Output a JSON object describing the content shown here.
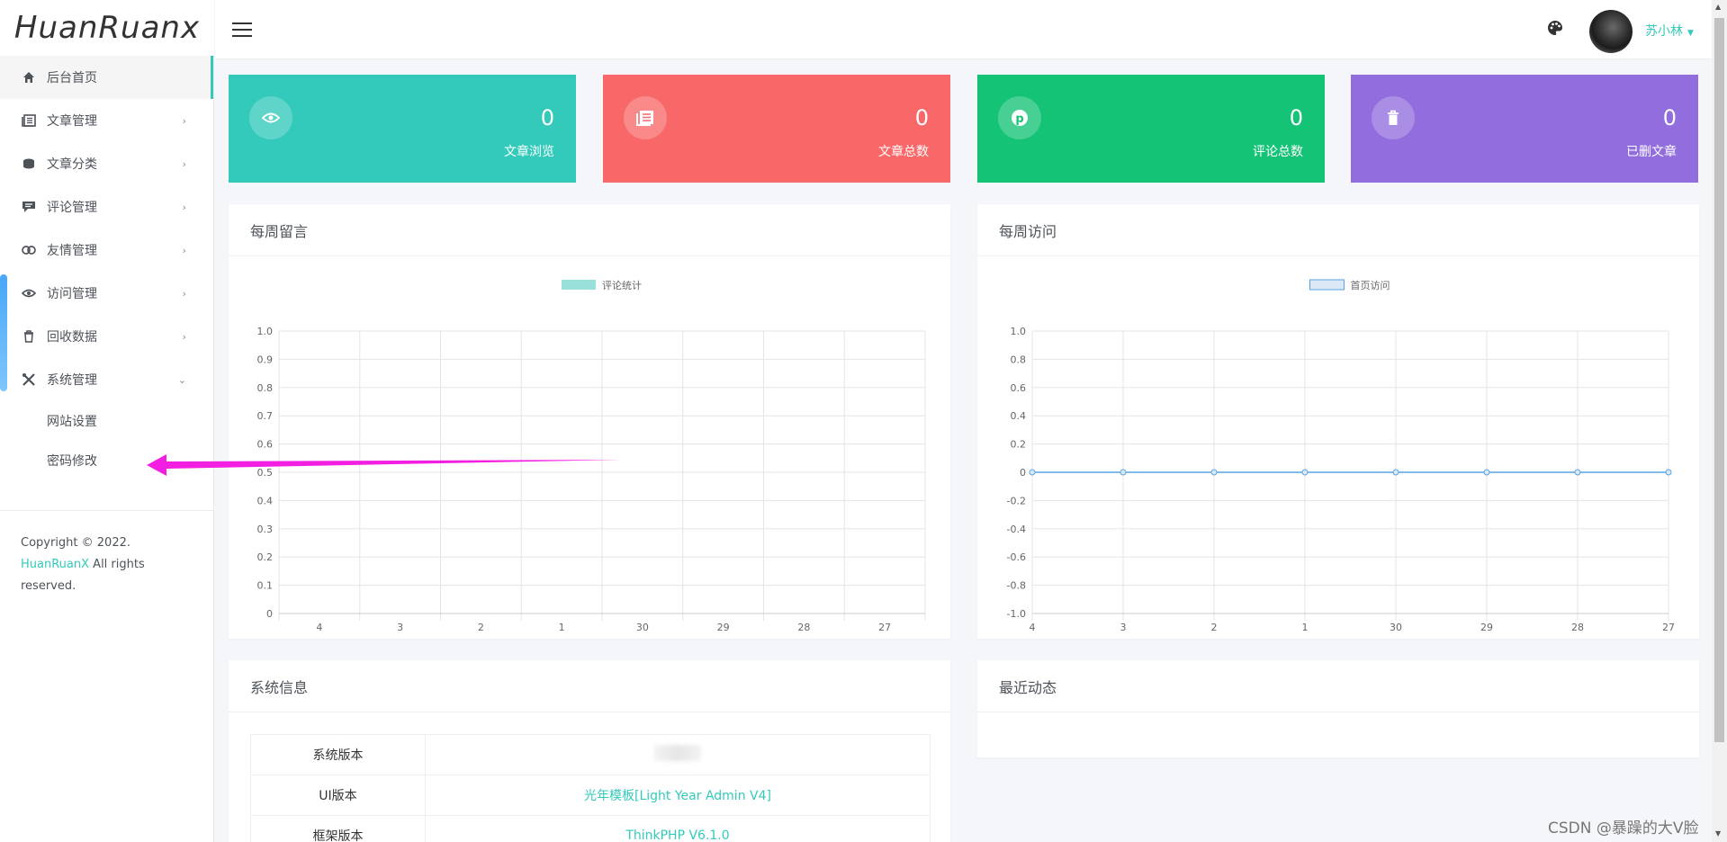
{
  "brand": {
    "logo": "HuanRuanx"
  },
  "sidebar": {
    "items": [
      {
        "label": "后台首页",
        "icon": "home-icon"
      },
      {
        "label": "文章管理",
        "icon": "article-icon"
      },
      {
        "label": "文章分类",
        "icon": "category-icon"
      },
      {
        "label": "评论管理",
        "icon": "comment-icon"
      },
      {
        "label": "友情管理",
        "icon": "link-icon"
      },
      {
        "label": "访问管理",
        "icon": "eye-icon"
      },
      {
        "label": "回收数据",
        "icon": "trash-icon"
      },
      {
        "label": "系统管理",
        "icon": "tools-icon"
      }
    ],
    "sub_items": [
      "网站设置",
      "密码修改"
    ],
    "copyright_prefix": "Copyright © 2022.",
    "copyright_brand": "HuanRuanX",
    "copyright_suffix": "All rights reserved."
  },
  "header": {
    "username": "苏小林"
  },
  "stats": [
    {
      "value": "0",
      "label": "文章浏览",
      "color": "#33cabb",
      "icon": "eye-icon"
    },
    {
      "value": "0",
      "label": "文章总数",
      "color": "#f96868",
      "icon": "article-icon"
    },
    {
      "value": "0",
      "label": "评论总数",
      "color": "#15c377",
      "icon": "pinterest-icon"
    },
    {
      "value": "0",
      "label": "已删文章",
      "color": "#926dde",
      "icon": "trash-icon"
    }
  ],
  "cards": {
    "weekly_comments": "每周留言",
    "weekly_visits": "每周访问",
    "system_info": "系统信息",
    "recent_activity": "最近动态"
  },
  "system_info": {
    "rows": [
      {
        "key": "系统版本",
        "value": ""
      },
      {
        "key": "UI版本",
        "value": "光年模板[Light Year Admin V4]"
      },
      {
        "key": "框架版本",
        "value": "ThinkPHP V6.1.0"
      }
    ]
  },
  "chart_data": [
    {
      "type": "bar",
      "categories": [
        "4",
        "3",
        "2",
        "1",
        "30",
        "29",
        "28",
        "27"
      ],
      "series": [
        {
          "name": "评论统计",
          "values": [
            0,
            0,
            0,
            0,
            0,
            0,
            0,
            0
          ],
          "color": "#98e0d9"
        }
      ],
      "ylim": [
        0,
        1
      ],
      "yticks": [
        "1.0",
        "0.9",
        "0.8",
        "0.7",
        "0.6",
        "0.5",
        "0.4",
        "0.3",
        "0.2",
        "0.1",
        "0"
      ],
      "grid": true,
      "legend": "top-center"
    },
    {
      "type": "line",
      "categories": [
        "4",
        "3",
        "2",
        "1",
        "30",
        "29",
        "28",
        "27"
      ],
      "series": [
        {
          "name": "首页访问",
          "values": [
            0,
            0,
            0,
            0,
            0,
            0,
            0,
            0
          ],
          "color": "#58a3e4"
        }
      ],
      "ylim": [
        -1,
        1
      ],
      "yticks": [
        "1.0",
        "0.8",
        "0.6",
        "0.4",
        "0.2",
        "0",
        "-0.2",
        "-0.4",
        "-0.6",
        "-0.8",
        "-1.0"
      ],
      "grid": true,
      "legend": "top-center"
    }
  ],
  "watermark": "CSDN @暴躁的大V脸"
}
